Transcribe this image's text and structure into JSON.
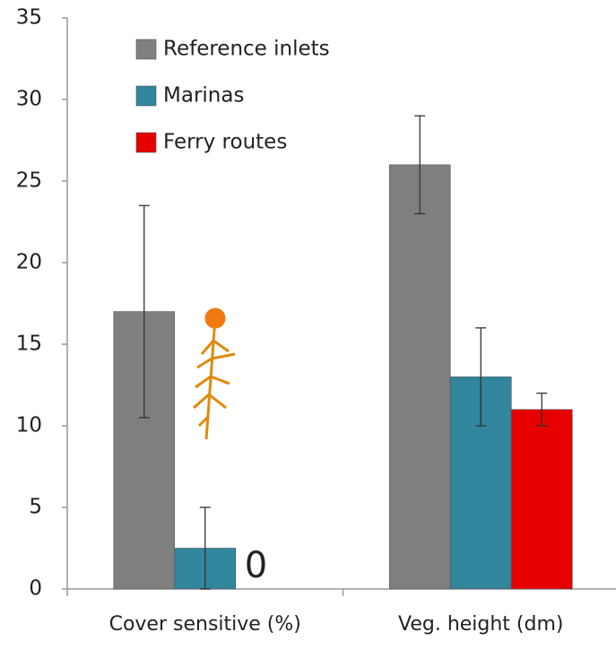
{
  "chart_data": {
    "type": "bar",
    "categories": [
      "Cover sensitive (%)",
      "Veg. height (dm)"
    ],
    "series": [
      {
        "name": "Reference inlets",
        "color": "#7f7f7f",
        "values": [
          17,
          26
        ],
        "errors": [
          6.5,
          3
        ]
      },
      {
        "name": "Marinas",
        "color": "#31859c",
        "values": [
          2.5,
          13
        ],
        "errors": [
          2.5,
          3
        ]
      },
      {
        "name": "Ferry routes",
        "color": "#e60000",
        "values": [
          0,
          11
        ],
        "errors": [
          null,
          1
        ]
      }
    ],
    "ylim": [
      0,
      35
    ],
    "yticks": [
      0,
      5,
      10,
      15,
      20,
      25,
      30,
      35
    ],
    "grid": false,
    "legend": "upper left"
  }
}
